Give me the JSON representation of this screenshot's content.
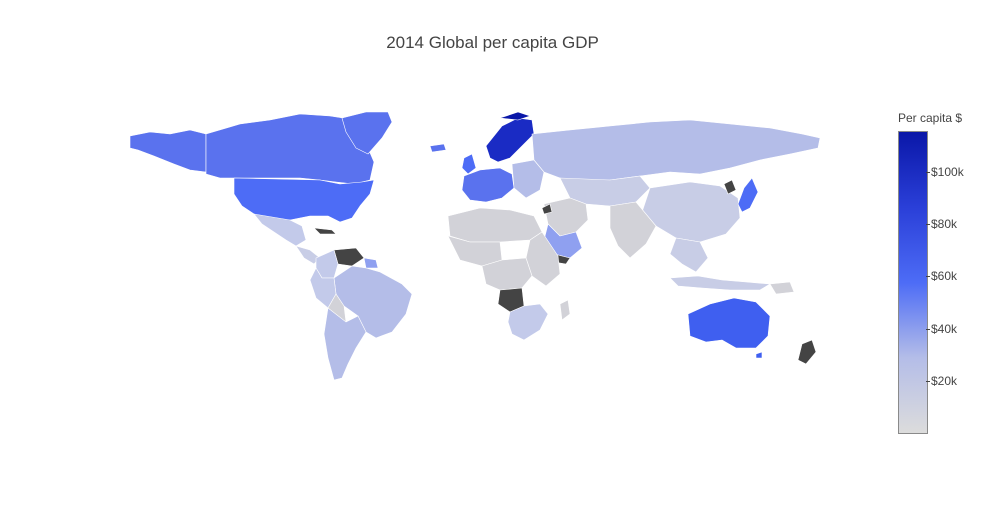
{
  "title": "2014 Global per capita GDP",
  "colorbar": {
    "title": "Per capita $",
    "min": 0,
    "max": 116000,
    "ticks": [
      {
        "value": 20000,
        "label": "$20k"
      },
      {
        "value": 40000,
        "label": "$40k"
      },
      {
        "value": 60000,
        "label": "$60k"
      },
      {
        "value": 80000,
        "label": "$80k"
      },
      {
        "value": 100000,
        "label": "$100k"
      }
    ],
    "colorscale": [
      "#dcdcdc",
      "#b4bde8",
      "#4d6cf6",
      "#2a3fd8",
      "#0a17a8"
    ]
  },
  "map_colors": {
    "no_data": "#444444",
    "background": "#ffffff",
    "border": "#ffffff"
  }
}
